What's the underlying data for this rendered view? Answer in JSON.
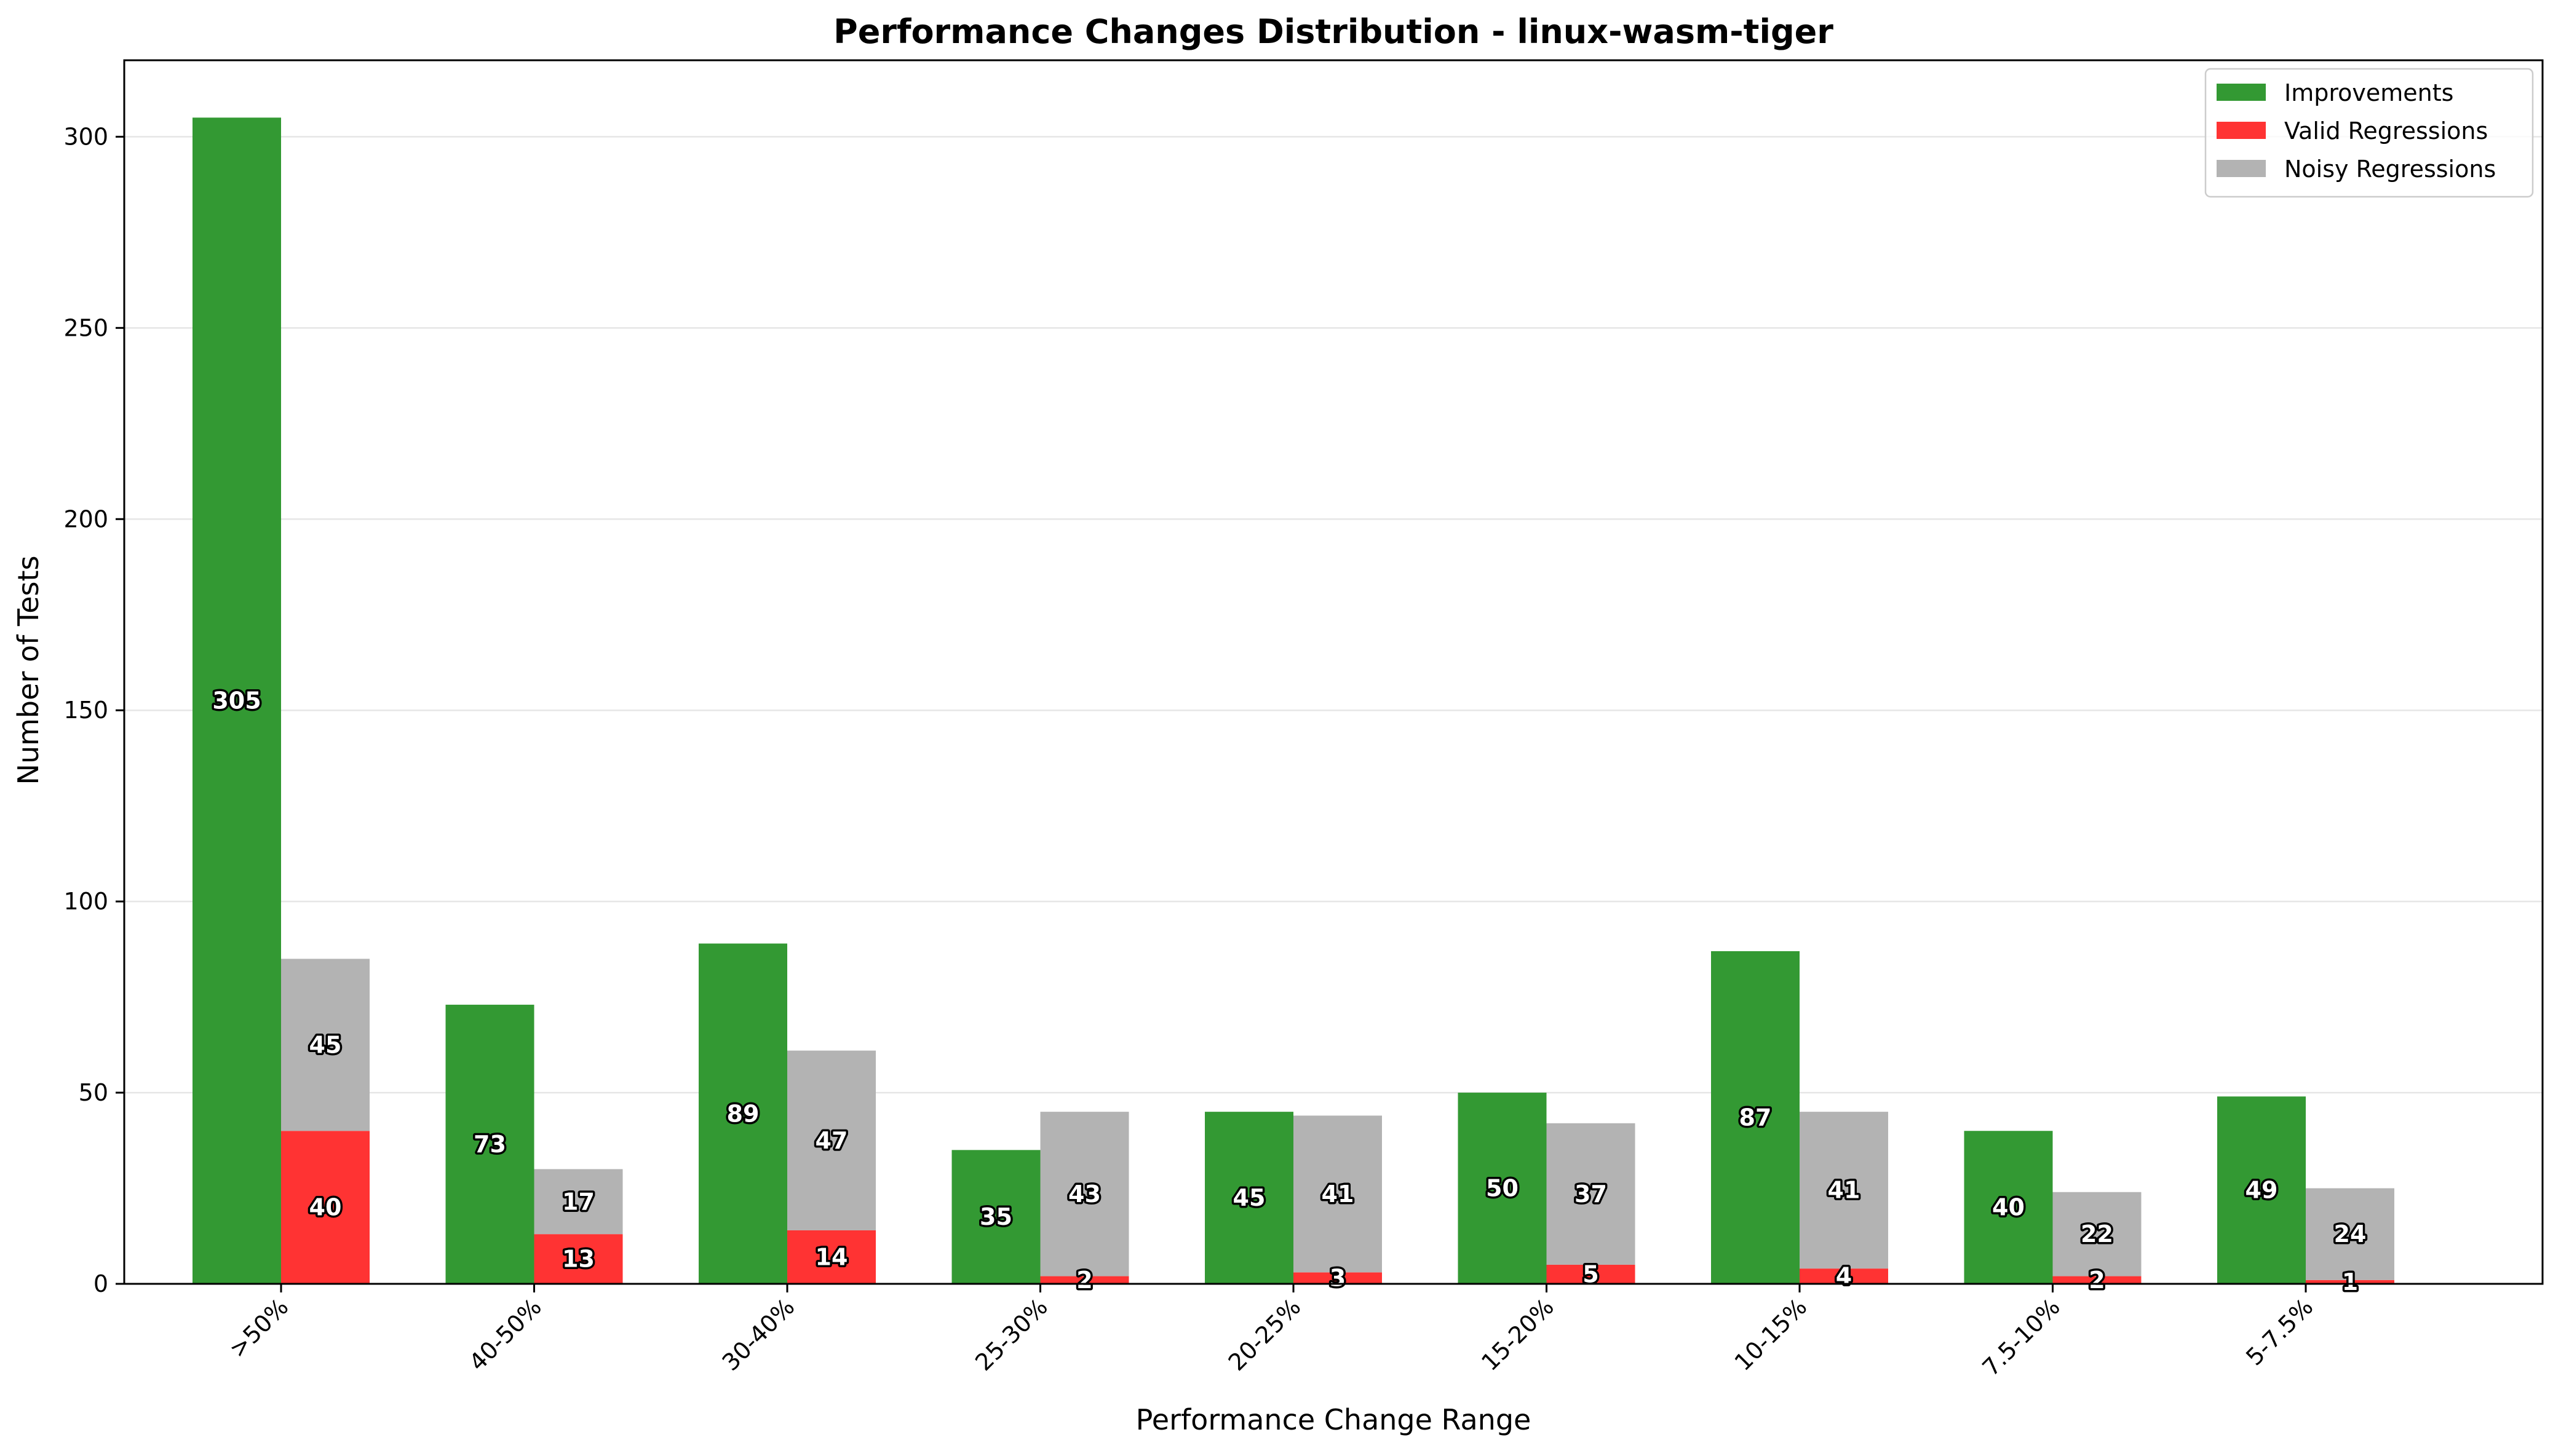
{
  "chart_data": {
    "type": "bar",
    "title": "Performance Changes Distribution - linux-wasm-tiger",
    "xlabel": "Performance Change Range",
    "ylabel": "Number of Tests",
    "categories": [
      ">50%",
      "40-50%",
      "30-40%",
      "25-30%",
      "20-25%",
      "15-20%",
      "10-15%",
      "7.5-10%",
      "5-7.5%"
    ],
    "series": [
      {
        "name": "Improvements",
        "values": [
          305,
          73,
          89,
          35,
          45,
          50,
          87,
          40,
          49
        ],
        "color": "#339933"
      },
      {
        "name": "Valid Regressions",
        "values": [
          40,
          13,
          14,
          2,
          3,
          5,
          4,
          2,
          1
        ],
        "color": "#ff3333"
      },
      {
        "name": "Noisy Regressions",
        "values": [
          45,
          17,
          47,
          43,
          41,
          37,
          41,
          22,
          24
        ],
        "color": "#b3b3b3"
      }
    ],
    "ylim": [
      0,
      320
    ],
    "yticks": [
      0,
      50,
      100,
      150,
      200,
      250,
      300
    ],
    "grid": true,
    "legend": "top-right",
    "regressions_stacked": true
  }
}
